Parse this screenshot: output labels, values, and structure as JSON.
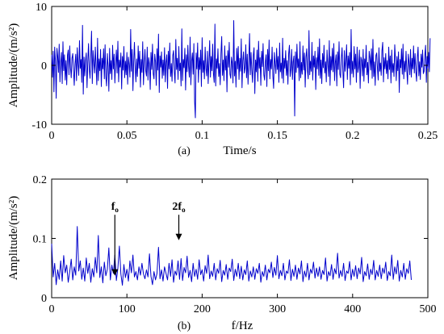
{
  "chart_data": [
    {
      "panel_id": "a",
      "type": "line",
      "panel_label": "(a)",
      "xlabel": "Time/s",
      "ylabel": "Amplitude/(m/s²)",
      "xlim": [
        0,
        0.25
      ],
      "ylim": [
        -10,
        10
      ],
      "xticks": [
        "0",
        "0.05",
        "0.1",
        "0.15",
        "0.2",
        "0.25"
      ],
      "xtick_values": [
        0,
        0.05,
        0.1,
        0.15,
        0.2,
        0.25
      ],
      "yticks": [
        "-10",
        "0",
        "10"
      ],
      "ytick_values": [
        -10,
        0,
        10
      ],
      "grid": false,
      "legend": "none",
      "line_color": "#0000cc",
      "series": [
        {
          "x_start": 0,
          "x_step": 0.0005,
          "values": [
            1.8,
            -2.0,
            2.4,
            -4.5,
            3.1,
            0.7,
            -5.6,
            2.9,
            1.5,
            -1.2,
            3.6,
            -2.8,
            0.4,
            2.2,
            -3.1,
            4.0,
            -0.9,
            1.8,
            -2.5,
            0.8,
            -3.3,
            1.7,
            2.6,
            -1.6,
            3.3,
            -0.4,
            -2.1,
            1.2,
            2.0,
            -0.8,
            -3.4,
            0.3,
            1.9,
            -2.6,
            3.0,
            0.2,
            -1.7,
            4.2,
            -0.5,
            1.0,
            -2.9,
            6.8,
            -4.9,
            1.4,
            -1.8,
            0.9,
            2.1,
            -3.8,
            0.6,
            3.7,
            -0.7,
            -2.2,
            1.6,
            5.8,
            -3.1,
            2.5,
            0.4,
            -1.3,
            3.1,
            -0.2,
            -3.3,
            4.6,
            -2.6,
            1.1,
            -0.9,
            2.7,
            -3.6,
            1.2,
            -0.6,
            2.8,
            -2.3,
            3.5,
            -1.9,
            -3.5,
            2.0,
            -0.1,
            -4.4,
            2.9,
            -1.4,
            0.8,
            -2.4,
            3.4,
            -0.6,
            1.9,
            -3.0,
            0.5,
            2.6,
            -1.3,
            4.1,
            -2.8,
            0.9,
            -0.3,
            2.1,
            -4.0,
            1.5,
            -0.8,
            3.2,
            -2.1,
            0.7,
            -1.6,
            2.2,
            -3.2,
            1.4,
            0.1,
            -2.0,
            6.1,
            -1.0,
            2.7,
            -4.3,
            0.6,
            3.9,
            -0.4,
            -2.8,
            1.1,
            -1.9,
            3.3,
            -0.5,
            2.4,
            -3.7,
            1.0,
            -1.2,
            4.0,
            -3.3,
            0.4,
            2.7,
            -0.9,
            -1.8,
            3.1,
            -2.5,
            1.3,
            0.2,
            -4.1,
            2.2,
            -0.7,
            3.6,
            -1.4,
            -2.3,
            1.9,
            0.6,
            -3.4,
            2.8,
            -0.8,
            5.3,
            -4.6,
            1.6,
            -0.3,
            2.3,
            -2.2,
            0.9,
            -1.7,
            3.0,
            -2.8,
            0.5,
            1.8,
            -3.9,
            2.4,
            -0.6,
            3.8,
            -1.9,
            0.3,
            -2.7,
            1.7,
            2.5,
            -1.1,
            -3.0,
            4.4,
            -0.7,
            1.2,
            -2.4,
            3.2,
            -0.9,
            0.4,
            -3.5,
            6.2,
            -2.6,
            1.0,
            -0.4,
            2.9,
            -4.2,
            1.8,
            -1.1,
            3.4,
            -0.2,
            -2.0,
            4.8,
            -3.3,
            0.7,
            2.1,
            -1.5,
            3.7,
            -6.1,
            -8.9,
            2.1,
            -0.6,
            3.8,
            -2.9,
            1.3,
            -0.7,
            2.6,
            -3.6,
            4.7,
            -1.2,
            0.8,
            -2.3,
            3.1,
            -0.5,
            -1.8,
            2.4,
            -3.1,
            0.6,
            4.2,
            -2.0,
            1.5,
            -0.9,
            3.6,
            -1.4,
            -2.9,
            7.0,
            -3.5,
            1.1,
            -0.5,
            2.8,
            -1.9,
            0.3,
            -3.3,
            2.0,
            4.9,
            -1.7,
            0.9,
            -2.6,
            3.3,
            -0.8,
            1.6,
            -4.5,
            2.5,
            -0.3,
            3.9,
            -1.5,
            -2.2,
            1.4,
            0.4,
            -3.0,
            7.6,
            -1.8,
            0.7,
            -3.7,
            2.9,
            -0.6,
            3.2,
            -2.4,
            1.2,
            -1.0,
            4.5,
            -3.8,
            0.8,
            2.3,
            -1.3,
            -0.4,
            3.5,
            -2.1,
            1.9,
            -3.2,
            0.5,
            5.4,
            -1.6,
            2.2,
            -0.8,
            -2.9,
            1.7,
            3.0,
            -4.8,
            0.9,
            -1.1,
            2.6,
            -2.7,
            4.1,
            -0.5,
            1.3,
            -3.4,
            2.4,
            -0.2,
            3.7,
            -1.6,
            -2.5,
            0.6,
            1.8,
            -3.6,
            2.7,
            -0.9,
            4.3,
            -2.3,
            1.0,
            -0.6,
            3.1,
            -1.8,
            -3.9,
            2.2,
            0.3,
            -1.4,
            2.9,
            -0.7,
            1.5,
            -2.9,
            3.8,
            -1.1,
            0.4,
            -2.2,
            4.6,
            -3.0,
            1.2,
            -0.5,
            2.5,
            -1.7,
            0.8,
            -3.2,
            2.0,
            3.4,
            -1.9,
            -0.7,
            2.7,
            -2.4,
            0.6,
            1.6,
            -8.6,
            2.3,
            -1.2,
            3.6,
            -0.4,
            1.1,
            -2.6,
            4.0,
            -2.1,
            0.5,
            -1.5,
            3.3,
            -0.8,
            2.1,
            -3.7,
            1.4,
            2.8,
            -0.9,
            -2.3,
            5.9,
            -1.6,
            0.7,
            -1.0,
            3.9,
            -2.5,
            1.6,
            -0.3,
            2.4,
            -4.1,
            1.3,
            -0.6,
            3.1,
            -1.7,
            4.5,
            -2.2,
            0.9,
            -3.1,
            2.0,
            -0.4,
            3.4,
            -1.3,
            0.6,
            -2.8,
            2.6,
            0.2,
            -1.9,
            4.2,
            -3.4,
            1.5,
            -0.8,
            2.9,
            -1.1,
            3.7,
            -2.6,
            0.4,
            1.8,
            -3.5,
            2.3,
            -0.7,
            4.0,
            -1.5,
            -2.1,
            1.2,
            3.0,
            -0.9,
            -3.8,
            2.5,
            -1.0,
            0.8,
            3.5,
            -2.4,
            1.6,
            -0.5,
            2.2,
            -3.3,
            6.1,
            -1.4,
            0.7,
            -2.0,
            3.2,
            -0.6,
            1.9,
            -2.9,
            3.1,
            -1.2,
            -0.3,
            2.6,
            -3.9,
            1.4,
            0.9,
            -1.8,
            2.7,
            -2.7,
            1.1,
            -0.4,
            3.4,
            -1.6,
            0.5,
            -3.0,
            2.4,
            1.3,
            -0.8,
            2.8,
            -2.2,
            4.4,
            -1.9,
            0.6,
            -3.4,
            1.7,
            2.1,
            -0.5,
            -2.5,
            3.0,
            -1.0,
            0.4,
            -1.7,
            2.5,
            3.9,
            -2.8,
            1.3,
            -0.6,
            2.0,
            -1.4,
            0.8,
            -2.3,
            3.1,
            -0.7,
            1.6,
            -3.0,
            2.6,
            -1.2,
            0.3,
            -1.9,
            3.5,
            0.9,
            -2.6,
            1.5,
            -0.9,
            2.3,
            -4.6,
            1.0,
            -0.4,
            2.8,
            -1.5,
            3.6,
            -2.3,
            0.7,
            -1.1,
            2.4,
            -0.8,
            -3.2,
            1.9,
            0.5,
            -1.6,
            2.7,
            -2.0,
            1.2,
            -0.6,
            3.3,
            -1.3,
            2.0,
            -0.9,
            -2.7,
            1.4,
            3.1,
            -1.8,
            0.6,
            -2.4,
            1.9,
            -0.3,
            2.6,
            -1.4,
            -1.0,
            1.7,
            3.4,
            -2.9,
            1.5,
            -0.5,
            2.2,
            -1.1,
            4.6
          ]
        }
      ]
    },
    {
      "panel_id": "b",
      "type": "line",
      "panel_label": "(b)",
      "xlabel": "f/Hz",
      "ylabel": "Amplitude/(m/s²)",
      "xlim": [
        0,
        500
      ],
      "ylim": [
        0,
        0.2
      ],
      "xticks": [
        "0",
        "100",
        "200",
        "300",
        "400",
        "500"
      ],
      "xtick_values": [
        0,
        100,
        200,
        300,
        400,
        500
      ],
      "yticks": [
        "0",
        "0.1",
        "0.2"
      ],
      "ytick_values": [
        0,
        0.1,
        0.2
      ],
      "grid": false,
      "legend": "none",
      "line_color": "#0000cc",
      "annotations": [
        {
          "text": "f",
          "sub": "o",
          "x": 84,
          "y": 0.037,
          "text_y": 0.148
        },
        {
          "text": "2f",
          "sub": "o",
          "x": 169,
          "y": 0.097,
          "text_y": 0.148
        }
      ],
      "series": [
        {
          "x_start": 0,
          "x_step": 2,
          "values": [
            0.091,
            0.035,
            0.058,
            0.022,
            0.047,
            0.031,
            0.062,
            0.028,
            0.071,
            0.042,
            0.055,
            0.026,
            0.044,
            0.065,
            0.03,
            0.052,
            0.038,
            0.12,
            0.045,
            0.062,
            0.031,
            0.05,
            0.028,
            0.067,
            0.041,
            0.058,
            0.026,
            0.049,
            0.035,
            0.068,
            0.042,
            0.105,
            0.034,
            0.052,
            0.025,
            0.06,
            0.037,
            0.048,
            0.084,
            0.03,
            0.055,
            0.041,
            0.072,
            0.029,
            0.05,
            0.087,
            0.04,
            0.021,
            0.056,
            0.034,
            0.048,
            0.028,
            0.062,
            0.042,
            0.072,
            0.035,
            0.044,
            0.03,
            0.052,
            0.038,
            0.058,
            0.04,
            0.032,
            0.047,
            0.035,
            0.074,
            0.036,
            0.022,
            0.044,
            0.03,
            0.041,
            0.085,
            0.032,
            0.047,
            0.028,
            0.052,
            0.041,
            0.03,
            0.058,
            0.036,
            0.064,
            0.026,
            0.045,
            0.038,
            0.062,
            0.031,
            0.066,
            0.029,
            0.051,
            0.042,
            0.07,
            0.034,
            0.046,
            0.027,
            0.058,
            0.036,
            0.048,
            0.031,
            0.064,
            0.039,
            0.047,
            0.028,
            0.054,
            0.041,
            0.072,
            0.032,
            0.045,
            0.036,
            0.058,
            0.03,
            0.049,
            0.041,
            0.063,
            0.027,
            0.046,
            0.038,
            0.056,
            0.031,
            0.05,
            0.044,
            0.065,
            0.029,
            0.048,
            0.036,
            0.058,
            0.032,
            0.053,
            0.03,
            0.047,
            0.039,
            0.062,
            0.028,
            0.045,
            0.035,
            0.052,
            0.031,
            0.049,
            0.041,
            0.058,
            0.026,
            0.044,
            0.036,
            0.055,
            0.03,
            0.048,
            0.042,
            0.06,
            0.034,
            0.051,
            0.038,
            0.071,
            0.032,
            0.046,
            0.037,
            0.058,
            0.03,
            0.045,
            0.041,
            0.064,
            0.029,
            0.048,
            0.036,
            0.055,
            0.031,
            0.05,
            0.04,
            0.062,
            0.027,
            0.045,
            0.035,
            0.058,
            0.03,
            0.048,
            0.041,
            0.06,
            0.033,
            0.05,
            0.036,
            0.052,
            0.031,
            0.046,
            0.039,
            0.067,
            0.028,
            0.044,
            0.037,
            0.056,
            0.031,
            0.049,
            0.04,
            0.075,
            0.033,
            0.046,
            0.036,
            0.058,
            0.029,
            0.045,
            0.041,
            0.061,
            0.03,
            0.048,
            0.036,
            0.054,
            0.032,
            0.05,
            0.04,
            0.068,
            0.027,
            0.044,
            0.037,
            0.057,
            0.031,
            0.048,
            0.039,
            0.063,
            0.03,
            0.046,
            0.036,
            0.055,
            0.032,
            0.05,
            0.041,
            0.06,
            0.029,
            0.044,
            0.037,
            0.072,
            0.031,
            0.052,
            0.04,
            0.063,
            0.028,
            0.046,
            0.035,
            0.058,
            0.031,
            0.049,
            0.041,
            0.062,
            0.03
          ]
        }
      ]
    }
  ]
}
